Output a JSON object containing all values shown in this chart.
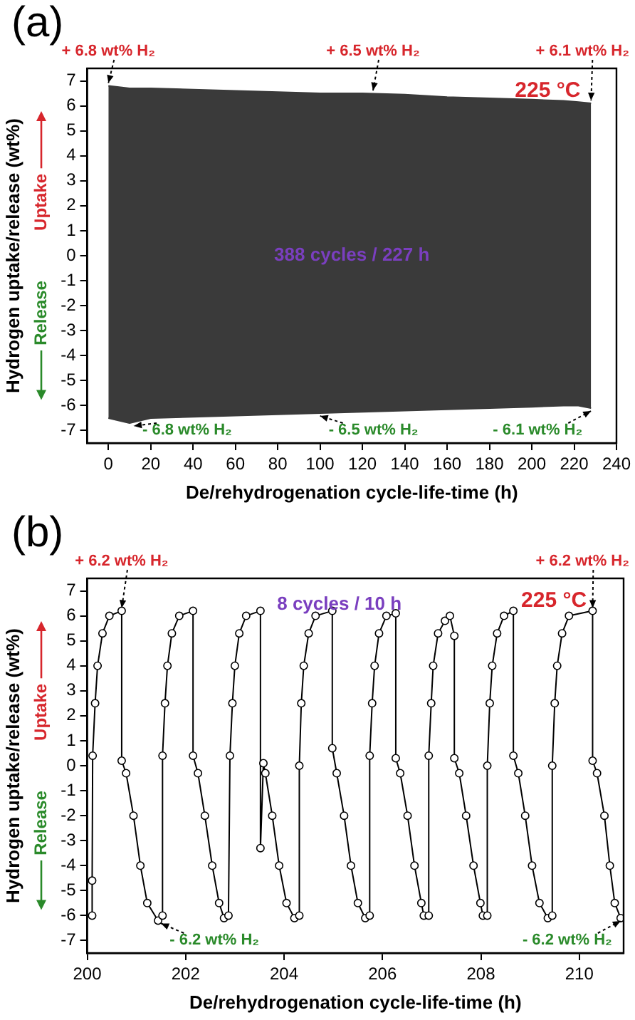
{
  "chart_data": [
    {
      "type": "area",
      "title": "(a)",
      "xlabel": "De/rehydrogenation cycle-life-time (h)",
      "ylabel": "Hydrogen uptake/release (wt%)",
      "series": [
        {
          "color": "#3a3a3a",
          "x": [
            0,
            10,
            20,
            40,
            60,
            80,
            100,
            120,
            140,
            160,
            180,
            200,
            215,
            222,
            228
          ],
          "values": [
            6.8,
            6.7,
            6.7,
            6.65,
            6.6,
            6.55,
            6.5,
            6.5,
            6.45,
            6.35,
            6.3,
            6.25,
            6.2,
            6.15,
            6.1
          ]
        },
        {
          "color": "#3a3a3a",
          "x": [
            0,
            10,
            20,
            40,
            60,
            80,
            100,
            120,
            140,
            160,
            180,
            200,
            215,
            222,
            228
          ],
          "values": [
            -6.5,
            -6.7,
            -6.5,
            -6.45,
            -6.4,
            -6.35,
            -6.3,
            -6.25,
            -6.2,
            -6.15,
            -6.1,
            -6.05,
            -6.0,
            -6.0,
            -6.1
          ]
        }
      ],
      "xlim": [
        -10,
        240
      ],
      "xticks": [
        0,
        20,
        40,
        60,
        80,
        100,
        120,
        140,
        160,
        180,
        200,
        220,
        240
      ],
      "ylim": [
        -7.5,
        7.5
      ],
      "yticks": [
        -7,
        -6,
        -5,
        -4,
        -3,
        -2,
        -1,
        0,
        1,
        2,
        3,
        4,
        5,
        6,
        7
      ],
      "annotations": [
        {
          "text": "+ 6.8 wt% H₂",
          "x": 0,
          "y": 6.8
        },
        {
          "text": "+ 6.5 wt% H₂",
          "x": 125,
          "y": 6.5
        },
        {
          "text": "+ 6.1 wt% H₂",
          "x": 228,
          "y": 6.1
        },
        {
          "text": "- 6.8 wt% H₂",
          "x": 12,
          "y": -6.7
        },
        {
          "text": "- 6.5 wt% H₂",
          "x": 100,
          "y": -6.3
        },
        {
          "text": "- 6.1 wt% H₂",
          "x": 228,
          "y": -6.1
        },
        "225 °C",
        "388 cycles / 227 h",
        "Uptake",
        "Release"
      ]
    },
    {
      "type": "line",
      "title": "(b)",
      "xlabel": "De/rehydrogenation cycle-life-time (h)",
      "ylabel": "Hydrogen uptake/release (wt%)",
      "marker": "circle",
      "series": [
        {
          "color": "#000000",
          "x": [
            200.1,
            200.1,
            200.11,
            200.16,
            200.21,
            200.31,
            200.45,
            200.7,
            200.7,
            200.79,
            200.94,
            201.08,
            201.22,
            201.44,
            201.53,
            201.53,
            201.58,
            201.63,
            201.72,
            201.87,
            202.15,
            202.15,
            202.25,
            202.39,
            202.54,
            202.68,
            202.78,
            202.87,
            202.9,
            202.95,
            203.0,
            203.09,
            203.23,
            203.52,
            203.52,
            203.58,
            203.62,
            203.76,
            203.9,
            204.05,
            204.21,
            204.31,
            204.31,
            204.35,
            204.4,
            204.5,
            204.64,
            204.98,
            204.98,
            205.07,
            205.22,
            205.36,
            205.5,
            205.65,
            205.74,
            205.74,
            205.79,
            205.84,
            205.93,
            206.08,
            206.27,
            206.27,
            206.36,
            206.51,
            206.65,
            206.79,
            206.84,
            206.94,
            206.94,
            206.99,
            207.03,
            207.13,
            207.27,
            207.37,
            207.46,
            207.46,
            207.56,
            207.7,
            207.85,
            207.99,
            208.04,
            208.13,
            208.13,
            208.18,
            208.23,
            208.33,
            208.47,
            208.66,
            208.66,
            208.76,
            208.9,
            209.04,
            209.19,
            209.36,
            209.45,
            209.45,
            209.5,
            209.55,
            209.65,
            209.79,
            210.27,
            210.27,
            210.36,
            210.51,
            210.62,
            210.72,
            210.84
          ],
          "values": [
            -6.0,
            -4.6,
            0.4,
            2.5,
            4.0,
            5.3,
            6.0,
            6.2,
            0.2,
            -0.3,
            -2.0,
            -4.0,
            -5.5,
            -6.2,
            -6.0,
            0.4,
            2.5,
            4.0,
            5.3,
            6.0,
            6.2,
            0.4,
            -0.3,
            -2.0,
            -4.0,
            -5.5,
            -6.1,
            -6.0,
            0.4,
            2.5,
            4.0,
            5.3,
            6.0,
            6.2,
            -3.3,
            0.1,
            -0.3,
            -2.0,
            -4.0,
            -5.5,
            -6.1,
            -6.0,
            0.0,
            2.5,
            4.0,
            5.3,
            6.0,
            6.2,
            0.7,
            -0.3,
            -2.0,
            -4.0,
            -5.5,
            -6.1,
            -6.0,
            0.4,
            2.5,
            4.0,
            5.3,
            6.0,
            6.1,
            0.3,
            -0.3,
            -2.0,
            -4.0,
            -5.5,
            -6.0,
            -6.0,
            0.4,
            2.5,
            4.0,
            5.3,
            5.8,
            6.0,
            5.2,
            0.3,
            -0.3,
            -2.0,
            -4.0,
            -5.5,
            -6.0,
            -6.0,
            0.0,
            2.5,
            4.0,
            5.3,
            6.0,
            6.2,
            0.4,
            -0.3,
            -2.0,
            -4.0,
            -5.5,
            -6.1,
            -6.0,
            0.0,
            2.5,
            4.0,
            5.3,
            6.0,
            6.2,
            0.2,
            -0.3,
            -2.0,
            -4.0,
            -5.5,
            -6.1
          ]
        }
      ],
      "xlim": [
        200,
        210.9
      ],
      "xticks": [
        200,
        202,
        204,
        206,
        208,
        210
      ],
      "ylim": [
        -7.5,
        7.5
      ],
      "yticks": [
        -7,
        -6,
        -5,
        -4,
        -3,
        -2,
        -1,
        0,
        1,
        2,
        3,
        4,
        5,
        6,
        7
      ],
      "annotations": [
        {
          "text": "+ 6.2 wt% H₂",
          "x": 200.7,
          "y": 6.2
        },
        {
          "text": "+ 6.2 wt% H₂",
          "x": 210.27,
          "y": 6.2
        },
        {
          "text": "- 6.2 wt% H₂",
          "x": 201.5,
          "y": -6.2
        },
        {
          "text": "- 6.2 wt% H₂",
          "x": 210.84,
          "y": -6.1
        },
        "225 °C",
        "8 cycles / 10 h",
        "Uptake",
        "Release"
      ]
    }
  ]
}
